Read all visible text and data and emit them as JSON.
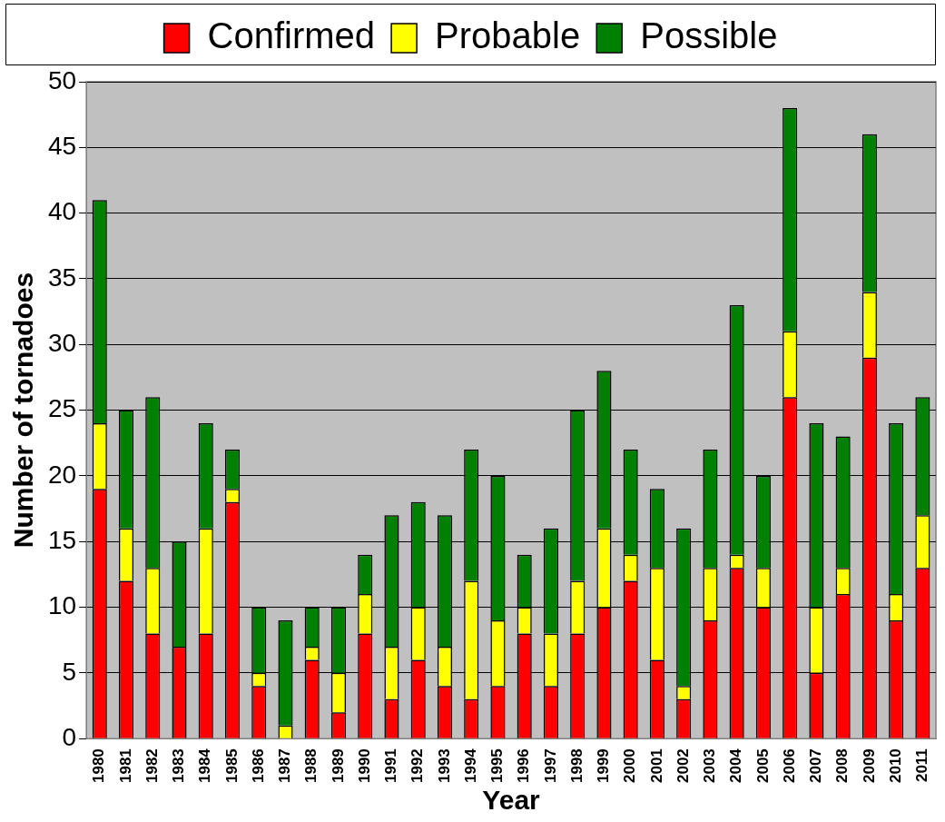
{
  "chart_data": {
    "type": "bar",
    "stacked": true,
    "xlabel": "Year",
    "ylabel": "Number of tornadoes",
    "categories": [
      "1980",
      "1981",
      "1982",
      "1983",
      "1984",
      "1985",
      "1986",
      "1987",
      "1988",
      "1989",
      "1990",
      "1991",
      "1992",
      "1993",
      "1994",
      "1995",
      "1996",
      "1997",
      "1998",
      "1999",
      "2000",
      "2001",
      "2002",
      "2003",
      "2004",
      "2005",
      "2006",
      "2007",
      "2008",
      "2009",
      "2010",
      "2011"
    ],
    "series": [
      {
        "name": "Confirmed",
        "color": "#ff0000",
        "values": [
          19,
          12,
          8,
          7,
          8,
          18,
          4,
          0,
          6,
          2,
          8,
          3,
          6,
          4,
          3,
          4,
          8,
          4,
          8,
          10,
          12,
          6,
          3,
          9,
          13,
          10,
          26,
          5,
          11,
          29,
          9,
          13
        ]
      },
      {
        "name": "Probable",
        "color": "#ffff00",
        "values": [
          5,
          4,
          5,
          0,
          8,
          1,
          1,
          1,
          1,
          3,
          3,
          4,
          4,
          3,
          9,
          5,
          2,
          4,
          4,
          6,
          2,
          7,
          1,
          4,
          1,
          3,
          5,
          5,
          2,
          5,
          2,
          4
        ]
      },
      {
        "name": "Possible",
        "color": "#008000",
        "values": [
          17,
          9,
          13,
          8,
          8,
          3,
          5,
          8,
          3,
          5,
          3,
          10,
          8,
          10,
          10,
          11,
          4,
          8,
          13,
          12,
          8,
          6,
          12,
          9,
          19,
          7,
          17,
          14,
          10,
          12,
          13,
          9
        ]
      }
    ],
    "ylim": [
      0,
      50
    ],
    "yticks": [
      0,
      5,
      10,
      15,
      20,
      25,
      30,
      35,
      40,
      45,
      50
    ],
    "grid": "y",
    "legend": "top"
  }
}
